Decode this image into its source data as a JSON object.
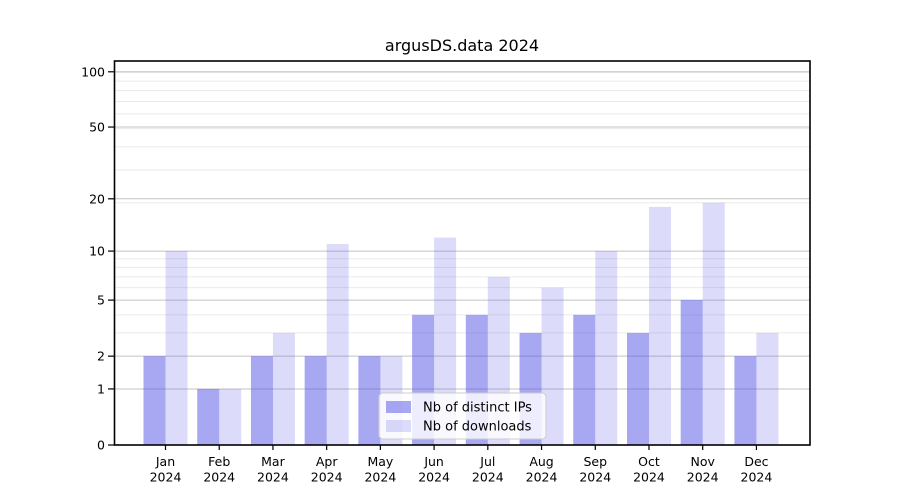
{
  "chart_data": {
    "type": "bar",
    "title": "argusDS.data 2024",
    "categories": [
      "Jan 2024",
      "Feb 2024",
      "Mar 2024",
      "Apr 2024",
      "May 2024",
      "Jun 2024",
      "Jul 2024",
      "Aug 2024",
      "Sep 2024",
      "Oct 2024",
      "Nov 2024",
      "Dec 2024"
    ],
    "month_labels": [
      "Jan",
      "Feb",
      "Mar",
      "Apr",
      "May",
      "Jun",
      "Jul",
      "Aug",
      "Sep",
      "Oct",
      "Nov",
      "Dec"
    ],
    "year_label": "2024",
    "series": [
      {
        "name": "Nb of distinct IPs",
        "color": "#5050e6",
        "opacity": 0.5,
        "values": [
          2,
          1,
          2,
          2,
          2,
          4,
          4,
          3,
          4,
          3,
          5,
          2
        ]
      },
      {
        "name": "Nb of downloads",
        "color": "#5050e6",
        "opacity": 0.2,
        "values": [
          10,
          1,
          3,
          11,
          2,
          12,
          7,
          6,
          10,
          18,
          19,
          3
        ]
      }
    ],
    "yscale": "log(1+y)",
    "y_ticks": [
      0,
      1,
      2,
      5,
      10,
      20,
      50,
      100
    ],
    "y_tick_labels": [
      "0",
      "1",
      "2",
      "5",
      "10",
      "20",
      "50",
      "100"
    ],
    "ylim": [
      0,
      113
    ],
    "xlabel": "",
    "ylabel": "",
    "grid": true,
    "legend_position": "lower center",
    "colors": {
      "bar_distinct_ips_rendered": "#a9a9f2",
      "bar_downloads_rendered": "#dadaf9",
      "grid_major": "#c3c3c3",
      "grid_minor": "#eaeaea",
      "spine": "#000000",
      "legend_border": "#cccccc"
    }
  }
}
